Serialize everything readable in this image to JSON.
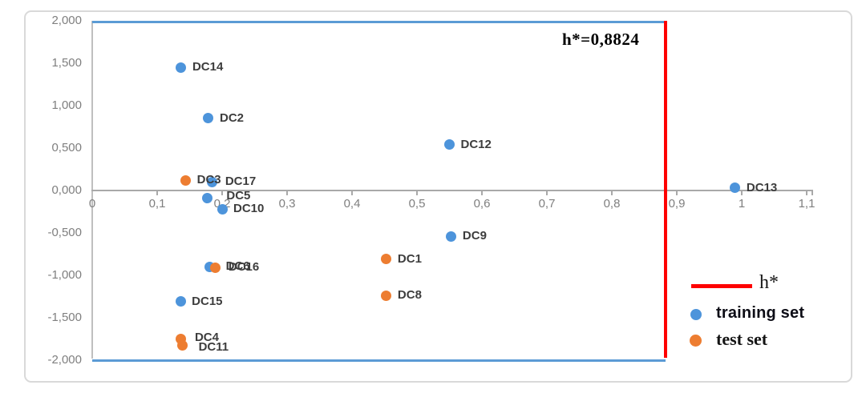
{
  "chart_data": {
    "type": "scatter",
    "title": "",
    "xlabel": "",
    "ylabel": "",
    "xlim": [
      0,
      1.1
    ],
    "ylim": [
      -2,
      2
    ],
    "grid": false,
    "decimal_separator": ",",
    "legend_position": "bottom-right",
    "x_ticks": [
      {
        "label": "0",
        "value": 0
      },
      {
        "label": "0,1",
        "value": 0.1
      },
      {
        "label": "0,2",
        "value": 0.2
      },
      {
        "label": "0,3",
        "value": 0.3
      },
      {
        "label": "0,4",
        "value": 0.4
      },
      {
        "label": "0,5",
        "value": 0.5
      },
      {
        "label": "0,6",
        "value": 0.6
      },
      {
        "label": "0,7",
        "value": 0.7
      },
      {
        "label": "0,8",
        "value": 0.8
      },
      {
        "label": "0,9",
        "value": 0.9
      },
      {
        "label": "1",
        "value": 1
      },
      {
        "label": "1,1",
        "value": 1.1
      }
    ],
    "y_ticks": [
      {
        "label": "2,000",
        "value": 2
      },
      {
        "label": "1,500",
        "value": 1.5
      },
      {
        "label": "1,000",
        "value": 1
      },
      {
        "label": "0,500",
        "value": 0.5
      },
      {
        "label": "0,000",
        "value": 0
      },
      {
        "label": "-0,500",
        "value": -0.5
      },
      {
        "label": "-1,000",
        "value": -1
      },
      {
        "label": "-1,500",
        "value": -1.5
      },
      {
        "label": "-2,000",
        "value": -2
      }
    ],
    "annotation": {
      "text": "h*=0,8824"
    },
    "threshold_line": {
      "axis": "x",
      "value": 0.8824,
      "color": "#fe0000",
      "label": "h*"
    },
    "boundary_lines": [
      {
        "y": 2,
        "x_start": 0,
        "x_end": 0.8824,
        "color": "#5b9bd5"
      },
      {
        "y": -2,
        "x_start": 0,
        "x_end": 0.8824,
        "color": "#5b9bd5"
      }
    ],
    "series": [
      {
        "name": "training set",
        "color": "#4d94db",
        "points": [
          {
            "label": "DC14",
            "x": 0.137,
            "y": 1.45
          },
          {
            "label": "DC2",
            "x": 0.179,
            "y": 0.85
          },
          {
            "label": "DC12",
            "x": 0.55,
            "y": 0.54
          },
          {
            "label": "DC17",
            "x": 0.185,
            "y": 0.1,
            "dx": 16
          },
          {
            "label": "DC13",
            "x": 0.99,
            "y": 0.03
          },
          {
            "label": "DC5",
            "x": 0.177,
            "y": -0.085,
            "dx": 24,
            "dy": -2
          },
          {
            "label": "DC10",
            "x": 0.2,
            "y": -0.22
          },
          {
            "label": "DC9",
            "x": 0.553,
            "y": -0.54
          },
          {
            "label": "DC6",
            "x": 0.181,
            "y": -0.9,
            "dx": 20
          },
          {
            "label": "DC15",
            "x": 0.136,
            "y": -1.31
          }
        ]
      },
      {
        "name": "test set",
        "color": "#ed7d31",
        "points": [
          {
            "label": "DC3",
            "x": 0.144,
            "y": 0.12
          },
          {
            "label": "DC16",
            "x": 0.19,
            "y": -0.91,
            "dx": 16
          },
          {
            "label": "DC1",
            "x": 0.453,
            "y": -0.81
          },
          {
            "label": "DC8",
            "x": 0.453,
            "y": -1.24
          },
          {
            "label": "DC4",
            "x": 0.137,
            "y": -1.75,
            "dx": 17,
            "dy": -2
          },
          {
            "label": "DC11",
            "x": 0.139,
            "y": -1.83,
            "dx": 20,
            "dy": 2
          }
        ]
      }
    ]
  }
}
